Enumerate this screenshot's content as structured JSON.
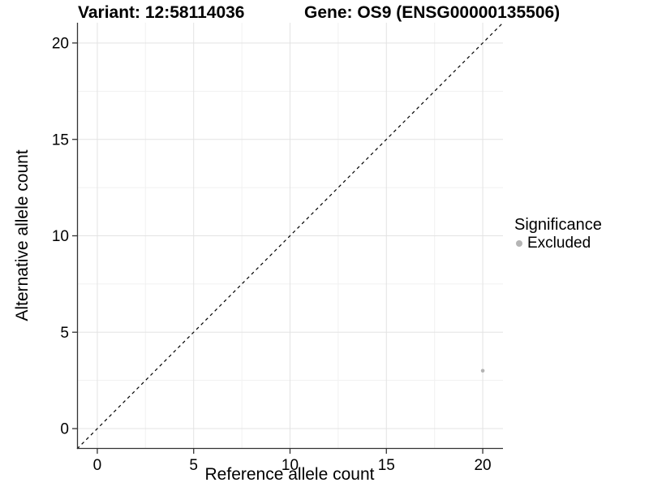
{
  "titles": {
    "variant": "Variant: 12:58114036",
    "gene": "Gene: OS9 (ENSG00000135506)"
  },
  "chart_data": {
    "type": "scatter",
    "title": "Variant: 12:58114036   Gene: OS9 (ENSG00000135506)",
    "xlabel": "Reference allele count",
    "ylabel": "Alternative allele count",
    "xlim": [
      -1.05,
      21.05
    ],
    "ylim": [
      -1.05,
      21.05
    ],
    "x_ticks": [
      0,
      5,
      10,
      15,
      20
    ],
    "y_ticks": [
      0,
      5,
      10,
      15,
      20
    ],
    "x_minor_ticks": [
      2.5,
      7.5,
      12.5,
      17.5
    ],
    "y_minor_ticks": [
      2.5,
      7.5,
      12.5,
      17.5
    ],
    "grid": "major-and-minor",
    "reference_line": {
      "type": "identity",
      "slope": 1,
      "intercept": 0,
      "style": "dashed",
      "color": "#000000"
    },
    "series": [
      {
        "name": "Excluded",
        "color": "#b3b3b3",
        "marker": "circle",
        "points": [
          {
            "x": 20,
            "y": 3
          }
        ]
      }
    ],
    "legend": {
      "title": "Significance",
      "position": "right",
      "entries": [
        {
          "label": "Excluded",
          "color": "#b5b5b5"
        }
      ]
    }
  },
  "colors": {
    "background": "#ffffff",
    "axis_line": "#333333",
    "tick_mark": "#333333",
    "tick_label": "#000000",
    "grid_major": "#e3e3e3",
    "grid_minor": "#f1f1f1",
    "point": "#b3b3b3",
    "dashed_line": "#000000"
  }
}
